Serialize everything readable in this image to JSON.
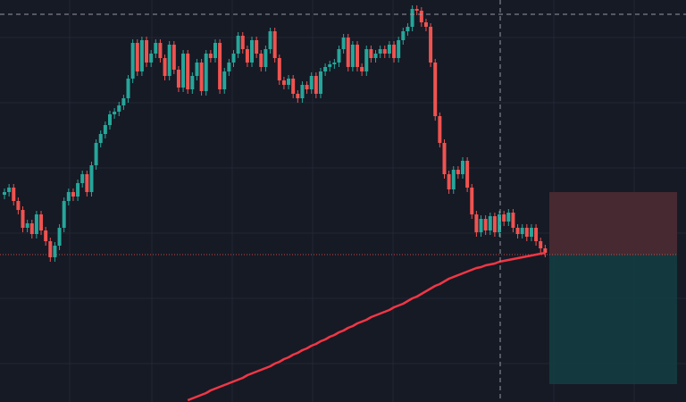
{
  "chart_data": {
    "type": "candlestick",
    "up_color": "#26a69a",
    "down_color": "#ef5350",
    "ylim": [
      0,
      450
    ],
    "open": [
      232,
      235,
      240,
      225,
      215,
      195,
      200,
      188,
      210,
      192,
      180,
      162,
      175,
      195,
      225,
      235,
      230,
      245,
      255,
      235,
      265,
      290,
      300,
      310,
      322,
      325,
      332,
      340,
      362,
      402,
      370,
      405,
      380,
      390,
      402,
      385,
      365,
      400,
      372,
      352,
      390,
      350,
      365,
      380,
      348,
      390,
      385,
      402,
      350,
      370,
      380,
      390,
      410,
      395,
      380,
      405,
      390,
      375,
      395,
      415,
      385,
      360,
      355,
      362,
      345,
      340,
      355,
      350,
      365,
      345,
      370,
      375,
      378,
      380,
      395,
      408,
      375,
      400,
      375,
      370,
      395,
      385,
      390,
      395,
      390,
      400,
      385,
      405,
      415,
      420,
      440,
      438,
      425,
      420,
      380,
      320,
      290,
      255,
      238,
      260,
      255,
      270,
      240,
      210,
      190,
      205,
      192,
      208,
      190,
      210,
      202,
      212,
      195,
      188,
      195,
      185,
      195,
      180,
      172
    ],
    "high": [
      239,
      244,
      244,
      229,
      219,
      204,
      204,
      214,
      214,
      196,
      184,
      179,
      199,
      229,
      239,
      239,
      249,
      259,
      259,
      269,
      294,
      304,
      314,
      326,
      329,
      336,
      344,
      366,
      406,
      406,
      409,
      409,
      394,
      406,
      406,
      389,
      404,
      404,
      376,
      394,
      394,
      369,
      384,
      384,
      394,
      394,
      406,
      406,
      374,
      384,
      394,
      414,
      414,
      399,
      409,
      409,
      394,
      399,
      419,
      419,
      389,
      364,
      366,
      366,
      349,
      359,
      359,
      369,
      369,
      374,
      379,
      382,
      384,
      399,
      412,
      412,
      404,
      404,
      379,
      399,
      399,
      394,
      399,
      399,
      404,
      404,
      409,
      419,
      424,
      444,
      444,
      442,
      429,
      424,
      384,
      324,
      294,
      259,
      264,
      264,
      274,
      274,
      244,
      214,
      209,
      209,
      212,
      212,
      214,
      214,
      216,
      216,
      199,
      199,
      199,
      199,
      199,
      184,
      176
    ],
    "low": [
      227,
      230,
      220,
      210,
      190,
      190,
      183,
      183,
      187,
      175,
      157,
      157,
      170,
      190,
      220,
      225,
      225,
      240,
      230,
      230,
      260,
      285,
      295,
      305,
      317,
      320,
      327,
      335,
      357,
      365,
      365,
      375,
      375,
      385,
      380,
      360,
      360,
      367,
      347,
      347,
      345,
      345,
      360,
      343,
      343,
      380,
      380,
      345,
      345,
      365,
      375,
      385,
      390,
      375,
      375,
      385,
      370,
      370,
      390,
      380,
      355,
      350,
      350,
      340,
      335,
      335,
      345,
      345,
      340,
      340,
      365,
      370,
      373,
      375,
      390,
      370,
      370,
      370,
      365,
      365,
      380,
      380,
      385,
      385,
      385,
      380,
      380,
      400,
      410,
      415,
      433,
      420,
      415,
      375,
      315,
      285,
      250,
      233,
      233,
      250,
      250,
      235,
      205,
      185,
      185,
      187,
      187,
      185,
      185,
      197,
      197,
      190,
      183,
      183,
      180,
      180,
      175,
      167,
      162
    ],
    "close": [
      235,
      240,
      225,
      215,
      195,
      200,
      188,
      210,
      192,
      180,
      162,
      175,
      195,
      225,
      235,
      230,
      245,
      255,
      235,
      265,
      290,
      300,
      310,
      322,
      325,
      332,
      340,
      362,
      402,
      370,
      405,
      380,
      390,
      402,
      385,
      365,
      400,
      372,
      352,
      390,
      350,
      365,
      380,
      348,
      390,
      385,
      402,
      350,
      370,
      380,
      390,
      410,
      395,
      380,
      405,
      390,
      375,
      395,
      415,
      385,
      360,
      355,
      362,
      345,
      340,
      355,
      350,
      365,
      345,
      370,
      375,
      378,
      380,
      395,
      408,
      375,
      400,
      375,
      370,
      395,
      385,
      390,
      395,
      390,
      400,
      385,
      405,
      415,
      420,
      440,
      438,
      425,
      420,
      380,
      320,
      290,
      255,
      238,
      260,
      255,
      270,
      240,
      210,
      190,
      205,
      192,
      208,
      190,
      210,
      202,
      212,
      195,
      188,
      195,
      185,
      195,
      180,
      172,
      167
    ],
    "moving_average": {
      "color": "#f23645",
      "values": [
        null,
        null,
        null,
        null,
        null,
        null,
        null,
        null,
        null,
        null,
        null,
        null,
        null,
        null,
        null,
        null,
        null,
        null,
        null,
        null,
        null,
        null,
        null,
        null,
        null,
        null,
        null,
        null,
        null,
        null,
        null,
        null,
        null,
        null,
        null,
        null,
        null,
        null,
        null,
        null,
        2,
        4,
        6,
        8,
        10,
        13,
        15,
        17,
        19,
        21,
        23,
        25,
        27,
        30,
        32,
        34,
        36,
        38,
        40,
        43,
        45,
        48,
        50,
        53,
        55,
        58,
        60,
        63,
        65,
        68,
        70,
        73,
        75,
        78,
        80,
        83,
        85,
        88,
        90,
        92,
        95,
        97,
        99,
        101,
        103,
        106,
        108,
        110,
        113,
        116,
        118,
        121,
        124,
        127,
        130,
        132,
        135,
        138,
        140,
        142,
        144,
        146,
        148,
        150,
        151,
        153,
        154,
        155,
        157,
        158,
        159,
        160,
        161,
        162,
        163,
        164,
        165,
        166,
        167
      ]
    },
    "position": {
      "entry": 165,
      "stop": 235,
      "target": 20,
      "stop_color": "#4a2a31",
      "target_color": "#133b3f"
    }
  }
}
